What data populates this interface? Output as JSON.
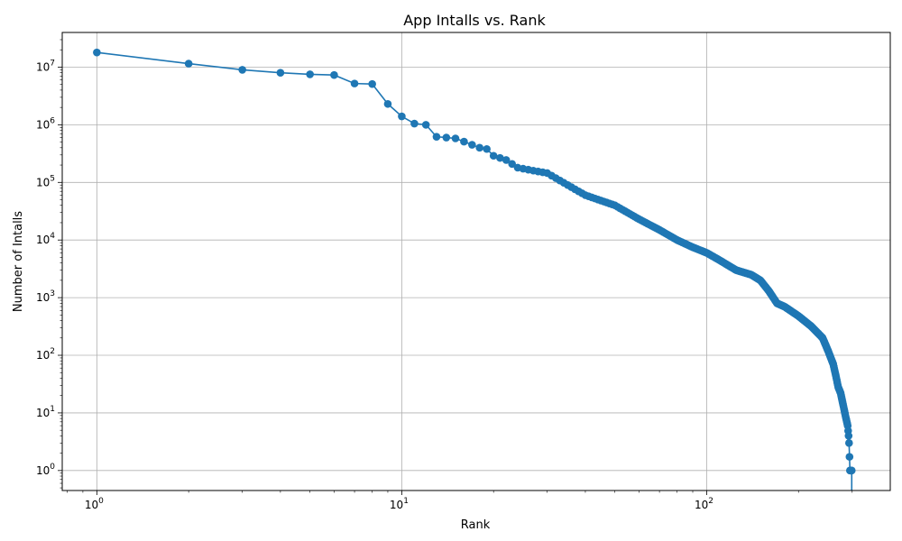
{
  "chart_data": {
    "type": "line",
    "title": "App Intalls vs. Rank",
    "xlabel": "Rank",
    "ylabel": "Number of Intalls",
    "xscale": "log",
    "yscale": "log",
    "xlim": [
      0.77,
      400
    ],
    "ylim": [
      0.45,
      40000000
    ],
    "grid": true,
    "series_color": "#1f77b4",
    "x_ticks": [
      {
        "base": "10",
        "exp": "0",
        "value": 1
      },
      {
        "base": "10",
        "exp": "1",
        "value": 10
      },
      {
        "base": "10",
        "exp": "2",
        "value": 100
      }
    ],
    "y_ticks": [
      {
        "base": "10",
        "exp": "0",
        "value": 1
      },
      {
        "base": "10",
        "exp": "1",
        "value": 10
      },
      {
        "base": "10",
        "exp": "2",
        "value": 100
      },
      {
        "base": "10",
        "exp": "3",
        "value": 1000
      },
      {
        "base": "10",
        "exp": "4",
        "value": 10000
      },
      {
        "base": "10",
        "exp": "5",
        "value": 100000
      },
      {
        "base": "10",
        "exp": "6",
        "value": 1000000
      },
      {
        "base": "10",
        "exp": "7",
        "value": 10000000
      }
    ],
    "anchors": [
      [
        1,
        18000000
      ],
      [
        2,
        11500000
      ],
      [
        3,
        9000000
      ],
      [
        4,
        8000000
      ],
      [
        5,
        7500000
      ],
      [
        6,
        7300000
      ],
      [
        7,
        5200000
      ],
      [
        8,
        5100000
      ],
      [
        9,
        2300000
      ],
      [
        10,
        1400000
      ],
      [
        11,
        1050000
      ],
      [
        12,
        1000000
      ],
      [
        13,
        620000
      ],
      [
        14,
        600000
      ],
      [
        15,
        580000
      ],
      [
        16,
        510000
      ],
      [
        17,
        450000
      ],
      [
        18,
        400000
      ],
      [
        19,
        380000
      ],
      [
        20,
        290000
      ],
      [
        22,
        245000
      ],
      [
        24,
        180000
      ],
      [
        27,
        160000
      ],
      [
        30,
        145000
      ],
      [
        35,
        90000
      ],
      [
        40,
        60000
      ],
      [
        50,
        40000
      ],
      [
        60,
        23000
      ],
      [
        70,
        15000
      ],
      [
        80,
        10000
      ],
      [
        90,
        7500
      ],
      [
        100,
        6000
      ],
      [
        110,
        4500
      ],
      [
        125,
        3000
      ],
      [
        140,
        2500
      ],
      [
        150,
        2000
      ],
      [
        160,
        1300
      ],
      [
        170,
        800
      ],
      [
        180,
        700
      ],
      [
        200,
        480
      ],
      [
        220,
        320
      ],
      [
        240,
        200
      ],
      [
        250,
        120
      ],
      [
        260,
        70
      ],
      [
        265,
        45
      ],
      [
        270,
        28
      ],
      [
        275,
        22
      ],
      [
        280,
        14
      ],
      [
        285,
        9
      ],
      [
        290,
        6
      ],
      [
        292,
        4
      ],
      [
        293,
        3
      ],
      [
        295,
        1
      ]
    ],
    "end_rank": 299,
    "drop_rank": 299
  }
}
